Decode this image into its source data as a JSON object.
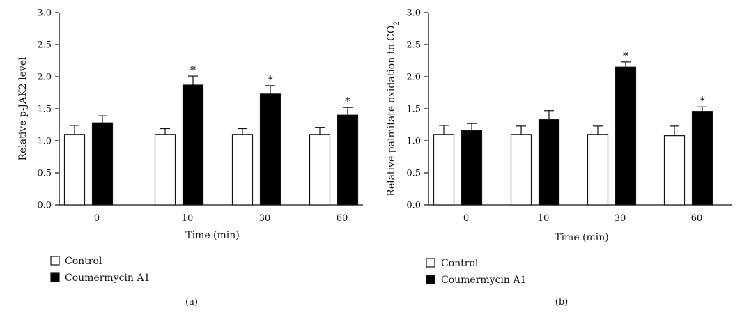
{
  "chart_data": [
    {
      "type": "bar",
      "panel_label": "(a)",
      "title": "",
      "xlabel": "Time (min)",
      "ylabel": "Relative p-JAK2 level",
      "ylim": [
        0,
        3.0
      ],
      "yticks": [
        "0.0",
        "0.5",
        "1.0",
        "1.5",
        "2.0",
        "2.5",
        "3.0"
      ],
      "categories": [
        "0",
        "10",
        "30",
        "60"
      ],
      "series": [
        {
          "name": "Control",
          "color": "#ffffff",
          "values": [
            1.1,
            1.1,
            1.1,
            1.1
          ],
          "errors": [
            0.14,
            0.09,
            0.09,
            0.11
          ],
          "significance": [
            "",
            "",
            "",
            ""
          ]
        },
        {
          "name": "Coumermycin A1",
          "color": "#000000",
          "values": [
            1.28,
            1.87,
            1.73,
            1.4
          ],
          "errors": [
            0.11,
            0.14,
            0.13,
            0.12
          ],
          "significance": [
            "",
            "*",
            "*",
            "*"
          ]
        }
      ],
      "legend": {
        "position": "bottom-left",
        "entries": [
          "Control",
          "Coumermycin A1"
        ]
      }
    },
    {
      "type": "bar",
      "panel_label": "(b)",
      "title": "",
      "xlabel": "Time (min)",
      "ylabel": "Relative palmitate oxidation to CO",
      "ylabel_subscript": "2",
      "ylim": [
        0,
        3.0
      ],
      "yticks": [
        "0.0",
        "0.5",
        "1.0",
        "1.5",
        "2.0",
        "2.5",
        "3.0"
      ],
      "categories": [
        "0",
        "10",
        "30",
        "60"
      ],
      "series": [
        {
          "name": "Control",
          "color": "#ffffff",
          "values": [
            1.1,
            1.1,
            1.1,
            1.08
          ],
          "errors": [
            0.14,
            0.13,
            0.13,
            0.15
          ],
          "significance": [
            "",
            "",
            "",
            ""
          ]
        },
        {
          "name": "Coumermycin A1",
          "color": "#000000",
          "values": [
            1.16,
            1.33,
            2.15,
            1.46
          ],
          "errors": [
            0.11,
            0.14,
            0.08,
            0.07
          ],
          "significance": [
            "",
            "",
            "*",
            "*"
          ]
        }
      ],
      "legend": {
        "position": "bottom-left",
        "entries": [
          "Control",
          "Coumermycin A1"
        ]
      }
    }
  ]
}
